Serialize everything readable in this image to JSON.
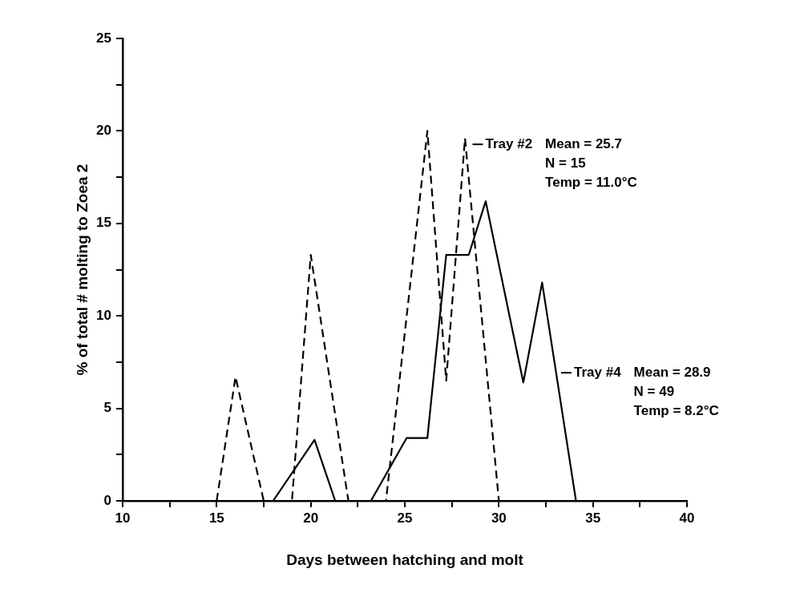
{
  "chart_data": {
    "type": "line",
    "xlabel": "Days between hatching and molt",
    "ylabel": "% of total # molting to Zoea 2",
    "xlim": [
      10,
      40
    ],
    "xticks": [
      10,
      {
        "value": 12.5,
        "label": null
      },
      15,
      {
        "value": 17.5,
        "label": null
      },
      20,
      {
        "value": 22.5,
        "label": null
      },
      25,
      {
        "value": 27.5,
        "label": null
      },
      30,
      {
        "value": 32.5,
        "label": null
      },
      35,
      {
        "value": 37.5,
        "label": null
      },
      40
    ],
    "ylim": [
      0,
      25
    ],
    "yticks": [
      0,
      {
        "value": 2.5,
        "label": null
      },
      5,
      {
        "value": 7.5,
        "label": null
      },
      10,
      {
        "value": 12.5,
        "label": null
      },
      15,
      {
        "value": 17.5,
        "label": null
      },
      20,
      {
        "value": 22.5,
        "label": null
      },
      25
    ],
    "grid": false,
    "legend": false,
    "marker": "none",
    "series": [
      {
        "color": "#000000",
        "line_style": "dashed",
        "x": [
          15,
          16,
          17.5,
          19,
          20,
          22,
          24,
          26.2,
          27.2,
          28.2,
          30
        ],
        "values": [
          0,
          6.7,
          0,
          0,
          13.3,
          0,
          0,
          20,
          6.5,
          19.6,
          0
        ]
      },
      {
        "color": "#000000",
        "line_style": "solid",
        "x": [
          18,
          20.2,
          21.3,
          23.2,
          25.1,
          26.2,
          27.2,
          28.4,
          29.3,
          31.3,
          32.3,
          34.1
        ],
        "values": [
          0,
          3.3,
          0,
          0,
          3.4,
          3.4,
          13.3,
          13.3,
          16.2,
          6.4,
          11.8,
          0
        ]
      }
    ],
    "annotations": [
      "Tray #2",
      "Mean = 25.7",
      "N = 15",
      "Temp = 11.0°C",
      "Tray #4",
      "Mean = 28.9",
      "N = 49",
      "Temp = 8.2°C"
    ]
  }
}
